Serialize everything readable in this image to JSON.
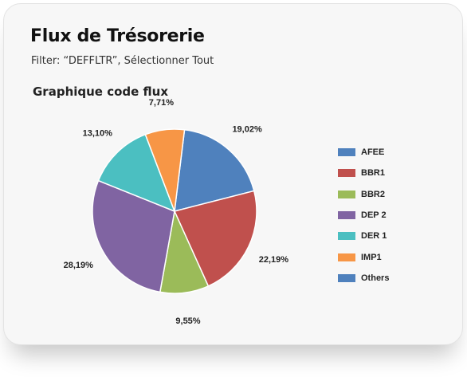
{
  "header": {
    "title": "Flux de Trésorerie",
    "filter": "Filter: “DEFFLTR”, Sélectionner Tout"
  },
  "chart_data": {
    "type": "pie",
    "title": "Graphique code flux",
    "start_angle_deg": 7,
    "direction": "clockwise",
    "slices": [
      {
        "name": "AFEE",
        "value": 19.02,
        "label": "19,02%",
        "color": "#4f81bd"
      },
      {
        "name": "BBR1",
        "value": 22.19,
        "label": "22,19%",
        "color": "#c0504d"
      },
      {
        "name": "BBR2",
        "value": 9.55,
        "label": "9,55%",
        "color": "#9bbb59"
      },
      {
        "name": "DEP 2",
        "value": 28.19,
        "label": "28,19%",
        "color": "#8064a2"
      },
      {
        "name": "DER 1",
        "value": 13.1,
        "label": "13,10%",
        "color": "#4bbfc1"
      },
      {
        "name": "IMP1",
        "value": 7.71,
        "label": "7,71%",
        "color": "#f79646"
      }
    ],
    "legend": {
      "placement": "right",
      "entries": [
        {
          "name": "AFEE",
          "color": "#4f81bd"
        },
        {
          "name": "BBR1",
          "color": "#c0504d"
        },
        {
          "name": "BBR2",
          "color": "#9bbb59"
        },
        {
          "name": "DEP 2",
          "color": "#8064a2"
        },
        {
          "name": "DER 1",
          "color": "#4bbfc1"
        },
        {
          "name": "IMP1",
          "color": "#f79646"
        },
        {
          "name": "Others",
          "color": "#4f81bd"
        }
      ]
    }
  }
}
